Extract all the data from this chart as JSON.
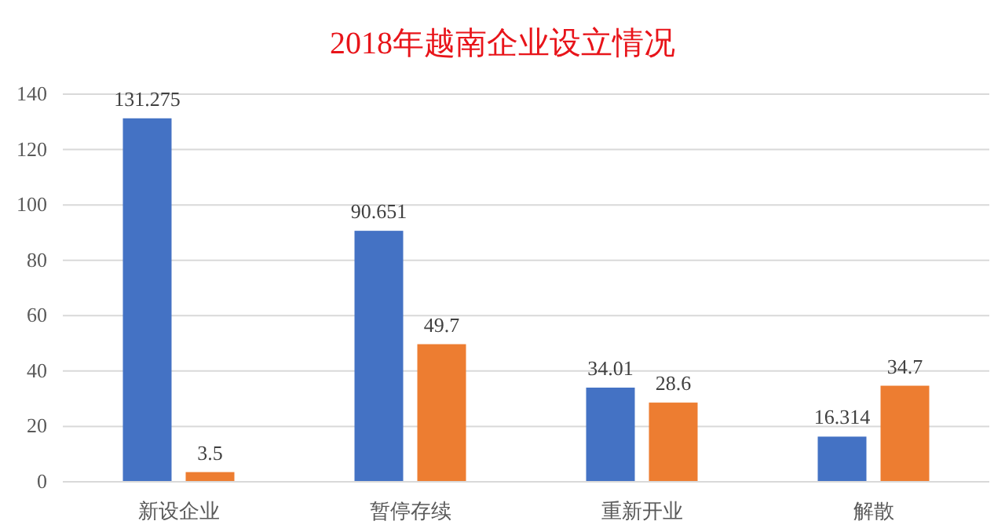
{
  "chart_data": {
    "type": "bar",
    "title": "2018年越南企业设立情况",
    "categories": [
      "新设企业",
      "暂停存续",
      "重新开业",
      "解散"
    ],
    "series": [
      {
        "color": "#4472c4",
        "values": [
          131.275,
          90.651,
          34.01,
          16.314
        ]
      },
      {
        "color": "#ed7d31",
        "values": [
          3.5,
          49.7,
          28.6,
          34.7
        ]
      }
    ],
    "ylim": [
      0,
      140
    ],
    "yticks": [
      0,
      20,
      40,
      60,
      80,
      100,
      120,
      140
    ],
    "grid": "y",
    "data_labels": true
  }
}
